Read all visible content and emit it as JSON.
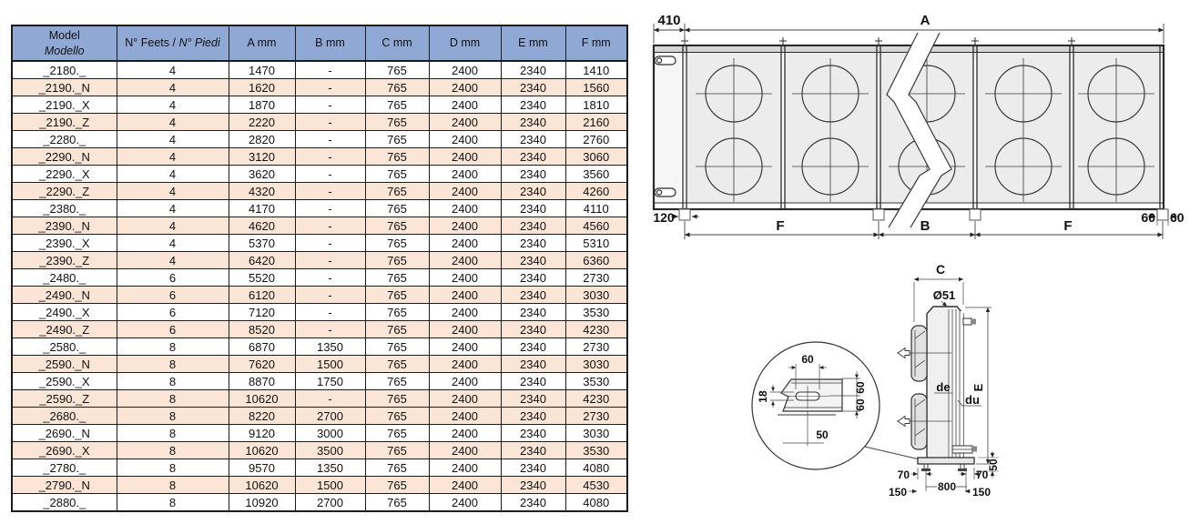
{
  "colors": {
    "header_bg": "#8FA9D4",
    "row_alt_bg": "#FBE5D6",
    "row_bg": "#FFFFFF",
    "border": "#1c1c1c"
  },
  "table": {
    "header": {
      "model_en": "Model",
      "model_it": "Modello",
      "feet_en": "N° Feets / ",
      "feet_it": "N° Piedi",
      "cols": [
        "A mm",
        "B mm",
        "C mm",
        "D mm",
        "E mm",
        "F mm"
      ]
    },
    "rows": [
      {
        "model": "_2180._",
        "feet": "4",
        "a": "1470",
        "b": "-",
        "c": "765",
        "d": "2400",
        "e": "2340",
        "f": "1410",
        "shaded": false
      },
      {
        "model": "_2190._N",
        "feet": "4",
        "a": "1620",
        "b": "-",
        "c": "765",
        "d": "2400",
        "e": "2340",
        "f": "1560",
        "shaded": true
      },
      {
        "model": "_2190._X",
        "feet": "4",
        "a": "1870",
        "b": "-",
        "c": "765",
        "d": "2400",
        "e": "2340",
        "f": "1810",
        "shaded": false
      },
      {
        "model": "_2190._Z",
        "feet": "4",
        "a": "2220",
        "b": "-",
        "c": "765",
        "d": "2400",
        "e": "2340",
        "f": "2160",
        "shaded": true
      },
      {
        "model": "_2280._",
        "feet": "4",
        "a": "2820",
        "b": "-",
        "c": "765",
        "d": "2400",
        "e": "2340",
        "f": "2760",
        "shaded": false
      },
      {
        "model": "_2290._N",
        "feet": "4",
        "a": "3120",
        "b": "-",
        "c": "765",
        "d": "2400",
        "e": "2340",
        "f": "3060",
        "shaded": true
      },
      {
        "model": "_2290._X",
        "feet": "4",
        "a": "3620",
        "b": "-",
        "c": "765",
        "d": "2400",
        "e": "2340",
        "f": "3560",
        "shaded": false
      },
      {
        "model": "_2290._Z",
        "feet": "4",
        "a": "4320",
        "b": "-",
        "c": "765",
        "d": "2400",
        "e": "2340",
        "f": "4260",
        "shaded": true
      },
      {
        "model": "_2380._",
        "feet": "4",
        "a": "4170",
        "b": "-",
        "c": "765",
        "d": "2400",
        "e": "2340",
        "f": "4110",
        "shaded": false
      },
      {
        "model": "_2390._N",
        "feet": "4",
        "a": "4620",
        "b": "-",
        "c": "765",
        "d": "2400",
        "e": "2340",
        "f": "4560",
        "shaded": true
      },
      {
        "model": "_2390._X",
        "feet": "4",
        "a": "5370",
        "b": "-",
        "c": "765",
        "d": "2400",
        "e": "2340",
        "f": "5310",
        "shaded": false
      },
      {
        "model": "_2390._Z",
        "feet": "4",
        "a": "6420",
        "b": "-",
        "c": "765",
        "d": "2400",
        "e": "2340",
        "f": "6360",
        "shaded": true
      },
      {
        "model": "_2480._",
        "feet": "6",
        "a": "5520",
        "b": "-",
        "c": "765",
        "d": "2400",
        "e": "2340",
        "f": "2730",
        "shaded": false
      },
      {
        "model": "_2490._N",
        "feet": "6",
        "a": "6120",
        "b": "-",
        "c": "765",
        "d": "2400",
        "e": "2340",
        "f": "3030",
        "shaded": true
      },
      {
        "model": "_2490._X",
        "feet": "6",
        "a": "7120",
        "b": "-",
        "c": "765",
        "d": "2400",
        "e": "2340",
        "f": "3530",
        "shaded": false
      },
      {
        "model": "_2490._Z",
        "feet": "6",
        "a": "8520",
        "b": "-",
        "c": "765",
        "d": "2400",
        "e": "2340",
        "f": "4230",
        "shaded": true
      },
      {
        "model": "_2580._",
        "feet": "8",
        "a": "6870",
        "b": "1350",
        "c": "765",
        "d": "2400",
        "e": "2340",
        "f": "2730",
        "shaded": false
      },
      {
        "model": "_2590._N",
        "feet": "8",
        "a": "7620",
        "b": "1500",
        "c": "765",
        "d": "2400",
        "e": "2340",
        "f": "3030",
        "shaded": true
      },
      {
        "model": "_2590._X",
        "feet": "8",
        "a": "8870",
        "b": "1750",
        "c": "765",
        "d": "2400",
        "e": "2340",
        "f": "3530",
        "shaded": false
      },
      {
        "model": "_2590._Z",
        "feet": "8",
        "a": "10620",
        "b": "-",
        "c": "765",
        "d": "2400",
        "e": "2340",
        "f": "4230",
        "shaded": true
      },
      {
        "model": "_2680._",
        "feet": "8",
        "a": "8220",
        "b": "2700",
        "c": "765",
        "d": "2400",
        "e": "2340",
        "f": "2730",
        "shaded": true
      },
      {
        "model": "_2690._N",
        "feet": "8",
        "a": "9120",
        "b": "3000",
        "c": "765",
        "d": "2400",
        "e": "2340",
        "f": "3030",
        "shaded": false
      },
      {
        "model": "_2690._X",
        "feet": "8",
        "a": "10620",
        "b": "3500",
        "c": "765",
        "d": "2400",
        "e": "2340",
        "f": "3530",
        "shaded": true
      },
      {
        "model": "_2780._",
        "feet": "8",
        "a": "9570",
        "b": "1350",
        "c": "765",
        "d": "2400",
        "e": "2340",
        "f": "4080",
        "shaded": false
      },
      {
        "model": "_2790._N",
        "feet": "8",
        "a": "10620",
        "b": "1500",
        "c": "765",
        "d": "2400",
        "e": "2340",
        "f": "4530",
        "shaded": true
      },
      {
        "model": "_2880._",
        "feet": "8",
        "a": "10920",
        "b": "2700",
        "c": "765",
        "d": "2400",
        "e": "2340",
        "f": "4080",
        "shaded": false
      }
    ]
  },
  "front_view": {
    "dim_overhang_left": "410",
    "dim_total_length": "A",
    "dim_foot_offset_left": "120",
    "dim_span_f_left": "F",
    "dim_span_b": "B",
    "dim_span_f_right": "F",
    "dim_edge_60_left": "60",
    "dim_edge_60_right": "60"
  },
  "side_view": {
    "dim_depth": "C",
    "dim_hole": "Ø51",
    "dim_height": "E",
    "label_de": "de",
    "label_du": "du",
    "dim_base_height": "50",
    "dim_foot_inset_left": "70",
    "dim_foot_inset_right": "70",
    "dim_foot_span": "800",
    "dim_base_150_left": "150",
    "dim_base_150_right": "150",
    "detail": {
      "dim_top": "60",
      "dim_slot_height": "18",
      "dim_right_upper": "60",
      "dim_right_lower": "60",
      "dim_bottom": "50"
    }
  }
}
